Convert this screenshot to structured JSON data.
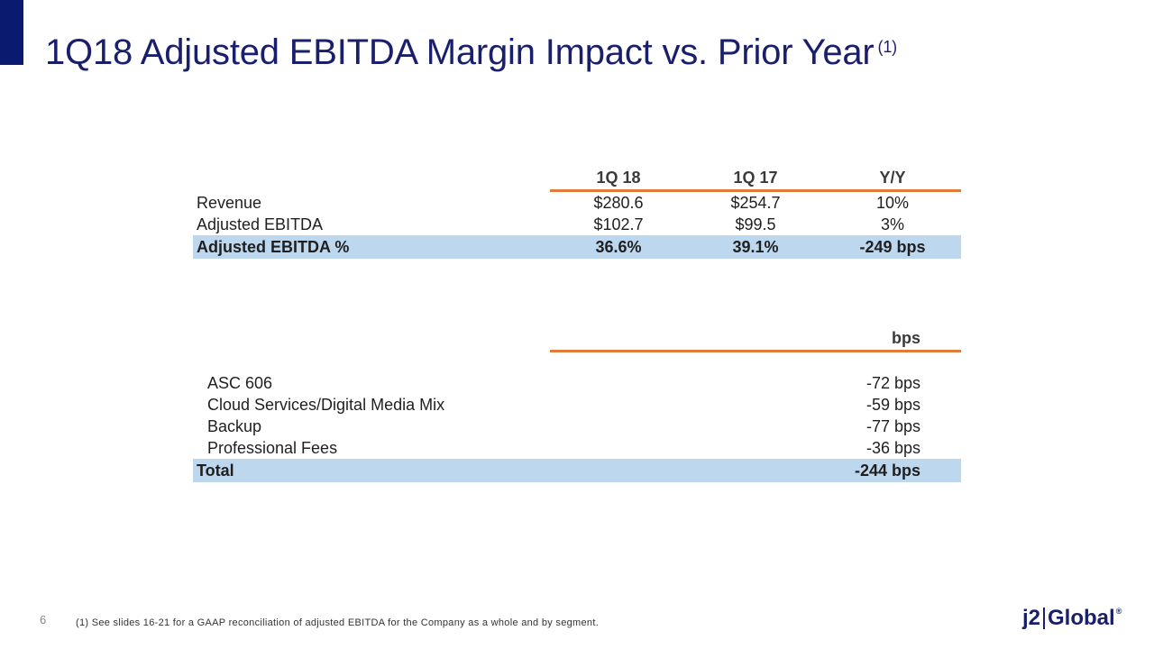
{
  "slide": {
    "title": "1Q18 Adjusted EBITDA Margin Impact vs. Prior Year",
    "title_note": "(1)",
    "page_number": "6",
    "footnote": "(1)  See slides 16-21 for a GAAP reconciliation of adjusted EBITDA for the Company as a whole and by segment.",
    "logo": {
      "left": "j2",
      "right": "Global",
      "mark": "®"
    }
  },
  "table1": {
    "headers": [
      "1Q 18",
      "1Q 17",
      "Y/Y"
    ],
    "rows": [
      {
        "label": "Revenue",
        "values": [
          "$280.6",
          "$254.7",
          "10%"
        ]
      },
      {
        "label": "Adjusted EBITDA",
        "values": [
          "$102.7",
          "$99.5",
          "3%"
        ]
      },
      {
        "label": "Adjusted EBITDA %",
        "values": [
          "36.6%",
          "39.1%",
          "-249 bps"
        ]
      }
    ]
  },
  "table2": {
    "header": "bps",
    "rows": [
      {
        "label": "ASC 606",
        "value": "-72 bps"
      },
      {
        "label": "Cloud Services/Digital Media Mix",
        "value": "-59 bps"
      },
      {
        "label": "Backup",
        "value": "-77 bps"
      },
      {
        "label": "Professional Fees",
        "value": "-36 bps"
      }
    ],
    "total": {
      "label": "Total",
      "value": "-244 bps"
    }
  },
  "colors": {
    "title": "#1a1f6b",
    "accent_bar": "#0a1a6e",
    "rule": "#e07b39",
    "highlight": "#bdd7ee"
  }
}
